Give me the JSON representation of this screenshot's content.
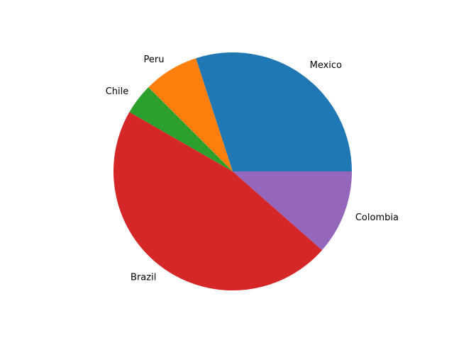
{
  "chart_data": {
    "type": "pie",
    "start_angle_deg": 0,
    "direction": "counterclockwise",
    "slices": [
      {
        "label": "Mexico",
        "value": 30.0,
        "color": "#1f77b4"
      },
      {
        "label": "Peru",
        "value": 7.5,
        "color": "#ff7f0e"
      },
      {
        "label": "Chile",
        "value": 4.2,
        "color": "#2ca02c"
      },
      {
        "label": "Brazil",
        "value": 46.8,
        "color": "#d62728"
      },
      {
        "label": "Colombia",
        "value": 11.5,
        "color": "#9467bd"
      }
    ]
  }
}
